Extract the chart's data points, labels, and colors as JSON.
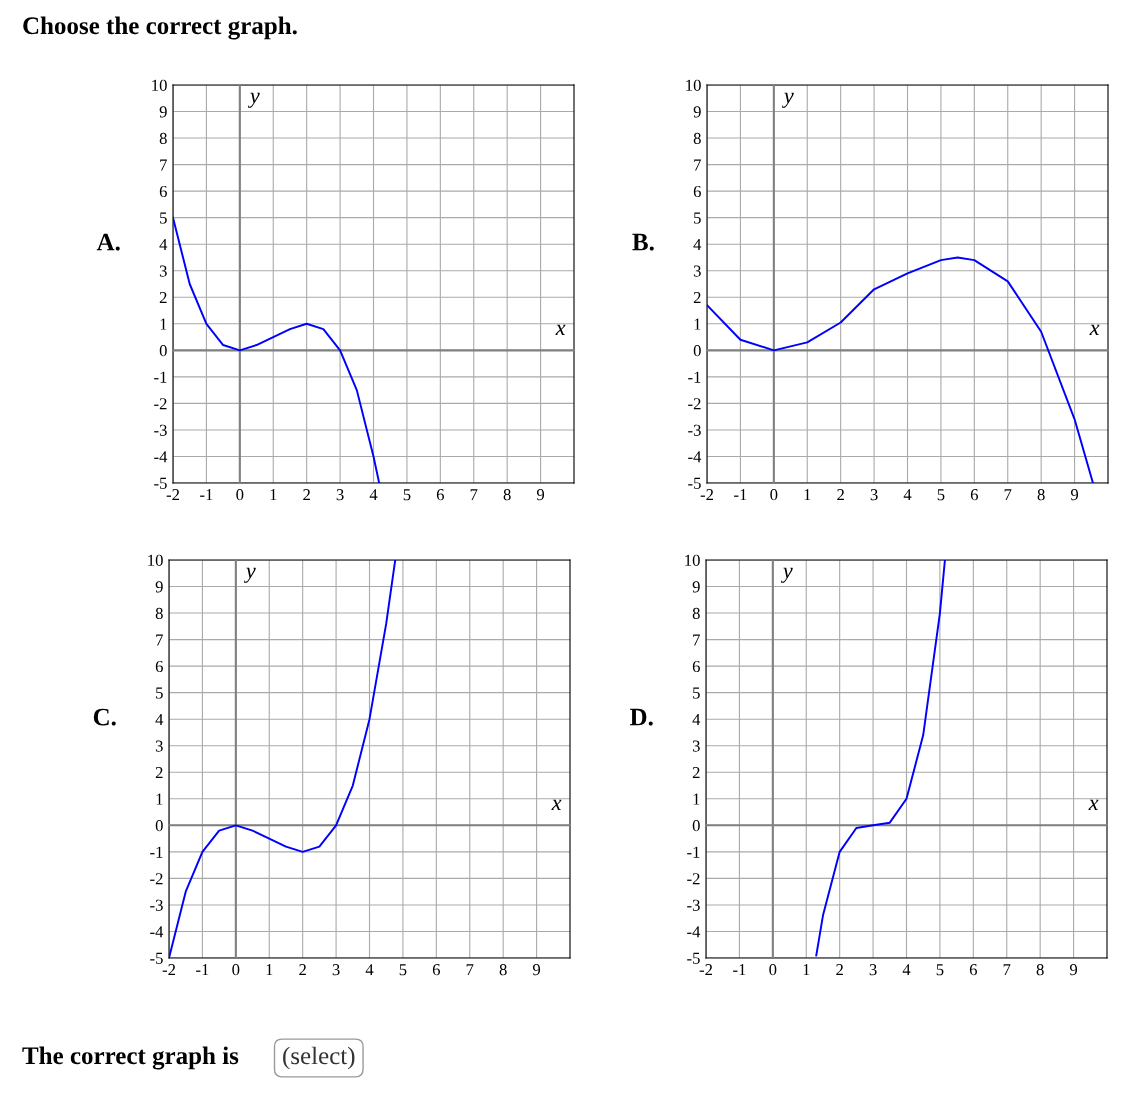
{
  "chart_data": [
    {
      "type": "line",
      "title": "A.",
      "xlabel": "x",
      "ylabel": "y",
      "annotations": [
        "Choose the correct graph."
      ],
      "xlim": [
        -2,
        10
      ],
      "ylim": [
        -5,
        10
      ],
      "xticks": [
        -2,
        -1,
        0,
        1,
        2,
        3,
        4,
        5,
        6,
        7,
        8,
        9
      ],
      "yticks": [
        -5,
        -4,
        -3,
        -2,
        -1,
        0,
        1,
        2,
        3,
        4,
        5,
        6,
        7,
        8,
        9,
        10
      ],
      "grid": true,
      "series": [
        {
          "color": "#0000ff",
          "x": [
            -2,
            -1.5,
            -1,
            -0.5,
            0,
            0.5,
            1,
            1.5,
            2,
            2.5,
            3,
            3.5,
            4,
            4.17
          ],
          "values": [
            5,
            2.5,
            1,
            0.2,
            0,
            0.2,
            0.5,
            0.8,
            1,
            0.8,
            0,
            -1.5,
            -4,
            -5
          ]
        }
      ]
    },
    {
      "type": "line",
      "title": "B.",
      "xlabel": "x",
      "ylabel": "y",
      "xlim": [
        -2,
        10
      ],
      "ylim": [
        -5,
        10
      ],
      "xticks": [
        -2,
        -1,
        0,
        1,
        2,
        3,
        4,
        5,
        6,
        7,
        8,
        9
      ],
      "yticks": [
        -5,
        -4,
        -3,
        -2,
        -1,
        0,
        1,
        2,
        3,
        4,
        5,
        6,
        7,
        8,
        9,
        10
      ],
      "grid": true,
      "series": [
        {
          "color": "#0000ff",
          "x": [
            -2,
            -1,
            0,
            1,
            2,
            3,
            4,
            5,
            5.5,
            6,
            7,
            8,
            9,
            9.55
          ],
          "values": [
            1.7,
            0.4,
            0,
            0.3,
            1.05,
            2.3,
            2.9,
            3.4,
            3.5,
            3.4,
            2.6,
            0.7,
            -2.6,
            -5
          ]
        }
      ]
    },
    {
      "type": "line",
      "title": "C.",
      "xlabel": "x",
      "ylabel": "y",
      "xlim": [
        -2,
        10
      ],
      "ylim": [
        -5,
        10
      ],
      "xticks": [
        -2,
        -1,
        0,
        1,
        2,
        3,
        4,
        5,
        6,
        7,
        8,
        9
      ],
      "yticks": [
        -5,
        -4,
        -3,
        -2,
        -1,
        0,
        1,
        2,
        3,
        4,
        5,
        6,
        7,
        8,
        9,
        10
      ],
      "grid": true,
      "series": [
        {
          "color": "#0000ff",
          "x": [
            -2,
            -1.5,
            -1,
            -0.5,
            0,
            0.5,
            1,
            1.5,
            2,
            2.5,
            3,
            3.5,
            4,
            4.5,
            4.77
          ],
          "values": [
            -5,
            -2.5,
            -1,
            -0.2,
            0,
            -0.2,
            -0.5,
            -0.8,
            -1,
            -0.8,
            0,
            1.5,
            4,
            7.6,
            10
          ]
        }
      ]
    },
    {
      "type": "line",
      "title": "D.",
      "xlabel": "x",
      "ylabel": "y",
      "annotations": [
        "The correct graph is",
        "(select)"
      ],
      "xlim": [
        -2,
        10
      ],
      "ylim": [
        -5,
        10
      ],
      "xticks": [
        -2,
        -1,
        0,
        1,
        2,
        3,
        4,
        5,
        6,
        7,
        8,
        9
      ],
      "yticks": [
        -5,
        -4,
        -3,
        -2,
        -1,
        0,
        1,
        2,
        3,
        4,
        5,
        6,
        7,
        8,
        9,
        10
      ],
      "grid": true,
      "series": [
        {
          "color": "#0000ff",
          "x": [
            1.3,
            1.5,
            2,
            2.5,
            3,
            3.5,
            4,
            4.5,
            5,
            5.15
          ],
          "values": [
            -4.9,
            -3.4,
            -1,
            -0.1,
            0,
            0.1,
            1,
            3.4,
            8,
            10
          ]
        }
      ]
    }
  ]
}
